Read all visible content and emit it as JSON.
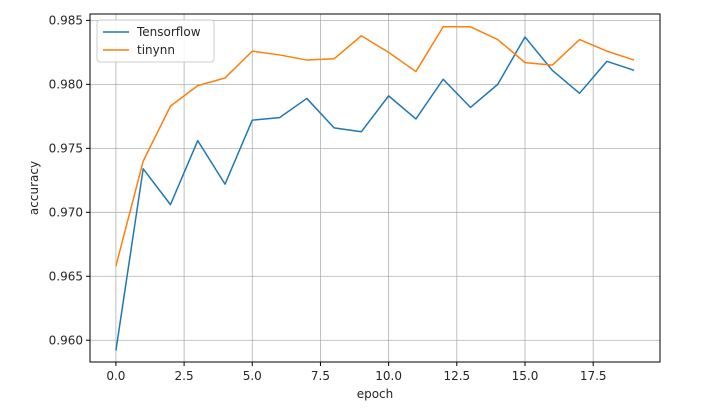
{
  "chart_data": {
    "type": "line",
    "title": "",
    "xlabel": "epoch",
    "ylabel": "accuracy",
    "xlim": [
      -0.95,
      19.95
    ],
    "ylim": [
      0.9583,
      0.9855
    ],
    "x_ticks": [
      0.0,
      2.5,
      5.0,
      7.5,
      10.0,
      12.5,
      15.0,
      17.5
    ],
    "x_tick_labels": [
      "0.0",
      "2.5",
      "5.0",
      "7.5",
      "10.0",
      "12.5",
      "15.0",
      "17.5"
    ],
    "y_ticks": [
      0.96,
      0.965,
      0.97,
      0.975,
      0.98,
      0.985
    ],
    "y_tick_labels": [
      "0.960",
      "0.965",
      "0.970",
      "0.975",
      "0.980",
      "0.985"
    ],
    "grid": true,
    "legend_position": "upper-left",
    "x": [
      0,
      1,
      2,
      3,
      4,
      5,
      6,
      7,
      8,
      9,
      10,
      11,
      12,
      13,
      14,
      15,
      16,
      17,
      18,
      19
    ],
    "series": [
      {
        "name": "Tensorflow",
        "color": "#1f77b4",
        "values": [
          0.9592,
          0.9734,
          0.9706,
          0.9756,
          0.9722,
          0.9772,
          0.9774,
          0.9789,
          0.9766,
          0.9763,
          0.9791,
          0.9773,
          0.9804,
          0.9782,
          0.98,
          0.9837,
          0.9811,
          0.9793,
          0.9818,
          0.9811
        ]
      },
      {
        "name": "tinynn",
        "color": "#ff7f0e",
        "values": [
          0.9658,
          0.974,
          0.9783,
          0.9799,
          0.9805,
          0.9826,
          0.9823,
          0.9819,
          0.982,
          0.9838,
          0.9825,
          0.981,
          0.9845,
          0.9845,
          0.9835,
          0.9817,
          0.9815,
          0.9835,
          0.9826,
          0.9819
        ]
      }
    ]
  }
}
